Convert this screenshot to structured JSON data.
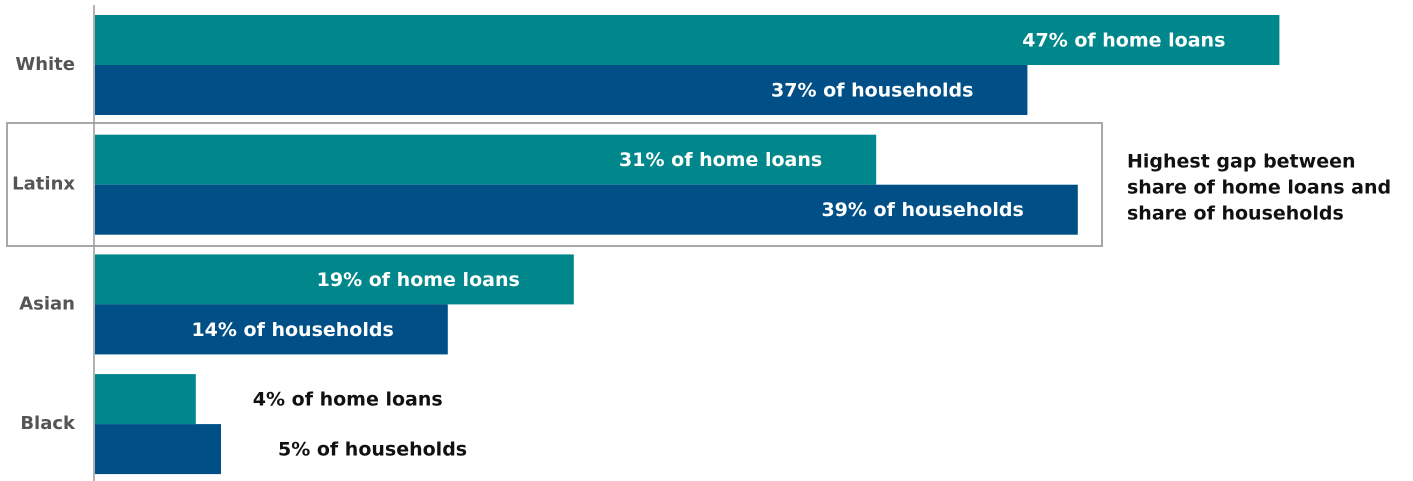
{
  "chart_data": {
    "type": "barh",
    "categories": [
      "White",
      "Latinx",
      "Asian",
      "Black"
    ],
    "series": [
      {
        "name": "home loans",
        "color": "#00878c",
        "values": [
          47,
          31,
          19,
          4
        ],
        "value_labels": [
          "47% of home loans",
          "31% of home loans",
          "19% of home loans",
          "4% of home loans"
        ]
      },
      {
        "name": "households",
        "color": "#004f86",
        "values": [
          37,
          39,
          14,
          5
        ],
        "value_labels": [
          "37% of households",
          "39% of households",
          "14% of households",
          "5% of households"
        ]
      }
    ],
    "xlim": [
      0,
      50
    ],
    "annotation": [
      "Highest gap between",
      "share of home loans and",
      "share of households"
    ]
  }
}
